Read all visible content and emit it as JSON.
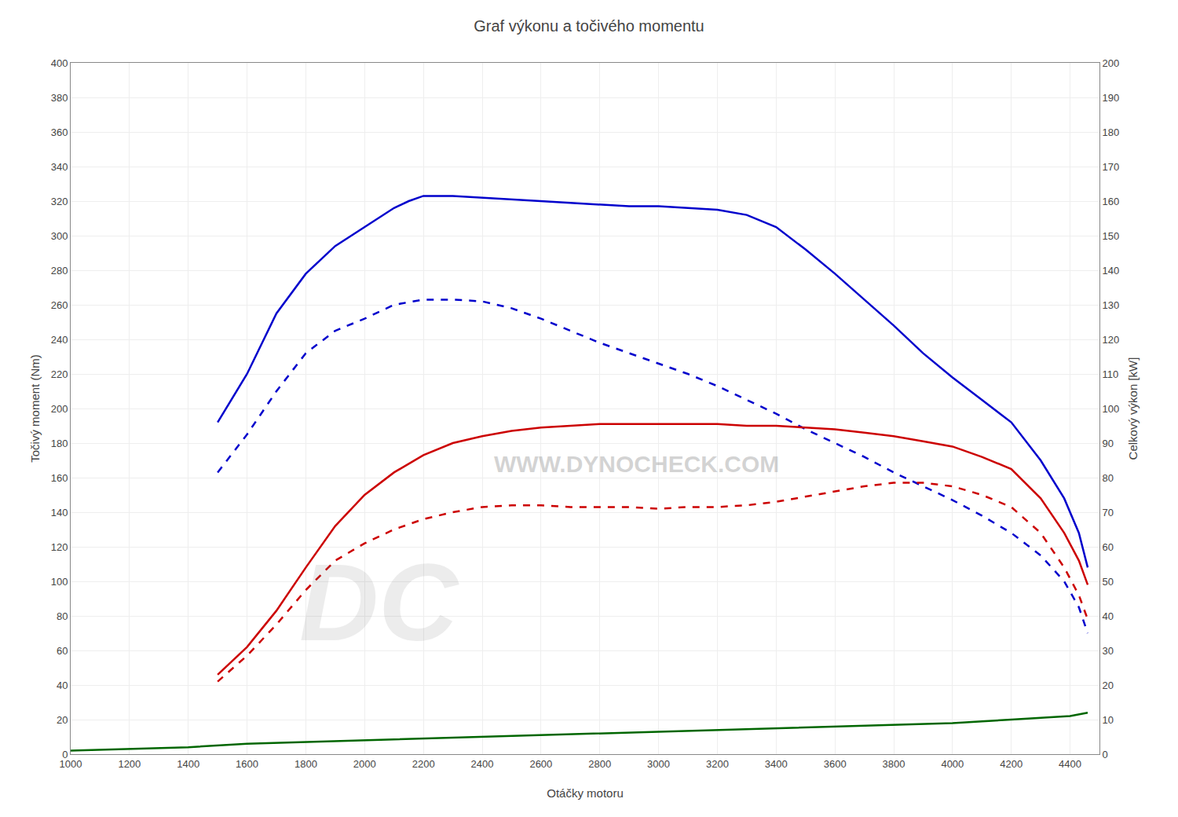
{
  "chart_data": {
    "type": "line",
    "title": "Graf výkonu a točivého momentu",
    "x_label": "Otáčky motoru",
    "y_label": "Točivý moment (Nm)",
    "y2_label": "Celkový výkon [kW]",
    "xlim": [
      1000,
      4500
    ],
    "ylim": [
      0,
      400
    ],
    "y2lim": [
      0,
      200
    ],
    "xticks": [
      1000,
      1200,
      1400,
      1600,
      1800,
      2000,
      2200,
      2400,
      2600,
      2800,
      3000,
      3200,
      3400,
      3600,
      3800,
      4000,
      4200,
      4400
    ],
    "yticks": [
      0,
      20,
      40,
      60,
      80,
      100,
      120,
      140,
      160,
      180,
      200,
      220,
      240,
      260,
      280,
      300,
      320,
      340,
      360,
      380,
      400
    ],
    "y2ticks": [
      0,
      10,
      20,
      30,
      40,
      50,
      60,
      70,
      80,
      90,
      100,
      110,
      120,
      130,
      140,
      150,
      160,
      170,
      180,
      190,
      200
    ],
    "grid": true,
    "annotations": [
      "WWW.DYNOCHECK.COM",
      "DC"
    ],
    "series": [
      {
        "color": "#0000cc",
        "line_style": "solid",
        "x": [
          1500,
          1600,
          1700,
          1800,
          1900,
          2000,
          2100,
          2150,
          2200,
          2300,
          2400,
          2500,
          2600,
          2700,
          2800,
          2900,
          3000,
          3100,
          3200,
          3300,
          3400,
          3500,
          3600,
          3700,
          3800,
          3900,
          4000,
          4100,
          4200,
          4300,
          4380,
          4430,
          4460
        ],
        "values": [
          192,
          220,
          255,
          278,
          294,
          305,
          316,
          320,
          323,
          323,
          322,
          321,
          320,
          319,
          318,
          317,
          317,
          316,
          315,
          312,
          305,
          292,
          278,
          263,
          248,
          232,
          218,
          205,
          192,
          170,
          148,
          128,
          108
        ]
      },
      {
        "color": "#0000cc",
        "line_style": "dashed",
        "x": [
          1500,
          1600,
          1700,
          1800,
          1900,
          2000,
          2100,
          2200,
          2300,
          2400,
          2500,
          2600,
          2700,
          2800,
          2900,
          3000,
          3100,
          3200,
          3300,
          3400,
          3500,
          3600,
          3700,
          3800,
          3900,
          4000,
          4100,
          4200,
          4300,
          4380,
          4430,
          4460
        ],
        "values": [
          163,
          185,
          210,
          232,
          245,
          252,
          260,
          263,
          263,
          262,
          258,
          252,
          245,
          238,
          232,
          226,
          220,
          213,
          205,
          197,
          188,
          180,
          172,
          163,
          155,
          147,
          138,
          128,
          115,
          100,
          85,
          70
        ]
      },
      {
        "color": "#cc0000",
        "line_style": "solid",
        "x": [
          1500,
          1600,
          1700,
          1800,
          1900,
          2000,
          2100,
          2200,
          2300,
          2400,
          2500,
          2600,
          2700,
          2800,
          2900,
          3000,
          3100,
          3200,
          3300,
          3400,
          3500,
          3600,
          3700,
          3800,
          3900,
          4000,
          4100,
          4200,
          4300,
          4380,
          4430,
          4460
        ],
        "values": [
          46,
          62,
          83,
          108,
          132,
          150,
          163,
          173,
          180,
          184,
          187,
          189,
          190,
          191,
          191,
          191,
          191,
          191,
          190,
          190,
          189,
          188,
          186,
          184,
          181,
          178,
          172,
          165,
          148,
          128,
          112,
          98
        ]
      },
      {
        "color": "#cc0000",
        "line_style": "dashed",
        "x": [
          1500,
          1600,
          1700,
          1800,
          1900,
          2000,
          2100,
          2200,
          2300,
          2400,
          2500,
          2600,
          2700,
          2800,
          2900,
          3000,
          3100,
          3200,
          3300,
          3400,
          3500,
          3600,
          3700,
          3800,
          3900,
          4000,
          4100,
          4200,
          4300,
          4380,
          4430,
          4460
        ],
        "values": [
          42,
          57,
          75,
          95,
          112,
          122,
          130,
          136,
          140,
          143,
          144,
          144,
          143,
          143,
          143,
          142,
          143,
          143,
          144,
          146,
          149,
          152,
          155,
          157,
          157,
          155,
          150,
          143,
          128,
          108,
          92,
          78
        ]
      },
      {
        "color": "#006600",
        "line_style": "solid",
        "x": [
          1000,
          1200,
          1400,
          1600,
          1800,
          2000,
          2200,
          2400,
          2600,
          2800,
          3000,
          3200,
          3400,
          3600,
          3800,
          4000,
          4200,
          4400,
          4460
        ],
        "values": [
          2,
          3,
          4,
          6,
          7,
          8,
          9,
          10,
          11,
          12,
          13,
          14,
          15,
          16,
          17,
          18,
          20,
          22,
          24
        ]
      }
    ]
  }
}
